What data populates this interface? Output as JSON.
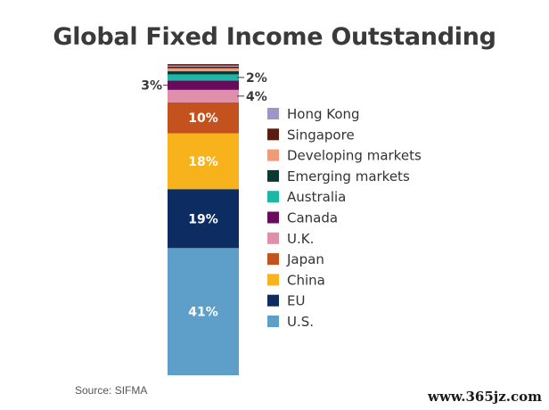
{
  "chart_data": {
    "type": "bar",
    "stacked": true,
    "title": "Global Fixed Income Outstanding",
    "unit": "%",
    "series": [
      {
        "name": "U.S.",
        "value": 41,
        "label": "41%",
        "color": "#5e9fc9"
      },
      {
        "name": "EU",
        "value": 19,
        "label": "19%",
        "color": "#0c2c62"
      },
      {
        "name": "China",
        "value": 18,
        "label": "18%",
        "color": "#f7b21c"
      },
      {
        "name": "Japan",
        "value": 10,
        "label": "10%",
        "color": "#c4521f"
      },
      {
        "name": "U.K.",
        "value": 4,
        "label": "4%",
        "color": "#e08fab"
      },
      {
        "name": "Canada",
        "value": 3,
        "label": "3%",
        "color": "#6a0a5c"
      },
      {
        "name": "Australia",
        "value": 2,
        "label": "2%",
        "color": "#1eb6a6"
      },
      {
        "name": "Emerging markets",
        "value": 1,
        "label": "",
        "color": "#0a3a32"
      },
      {
        "name": "Developing markets",
        "value": 1,
        "label": "",
        "color": "#f09a7a"
      },
      {
        "name": "Singapore",
        "value": 0.5,
        "label": "",
        "color": "#5a1c0e"
      },
      {
        "name": "Hong Kong",
        "value": 0.5,
        "label": "",
        "color": "#9d97c9"
      }
    ],
    "legend_order": [
      "Hong Kong",
      "Singapore",
      "Developing markets",
      "Emerging markets",
      "Australia",
      "Canada",
      "U.K.",
      "Japan",
      "China",
      "EU",
      "U.S."
    ],
    "legend_position": "right"
  },
  "source": "Source: SIFMA",
  "watermark": "www.365jz.com"
}
